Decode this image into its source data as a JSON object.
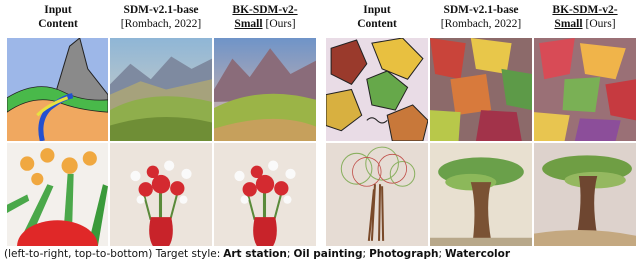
{
  "panels": [
    {
      "columns": [
        {
          "title": [
            "Input",
            "Content"
          ]
        },
        {
          "title": [
            "SDM-v2.1-base"
          ],
          "note": "[Rombach, 2022]"
        },
        {
          "title": [
            "BK-SDM-v2-",
            "Small"
          ],
          "note": "[Ours]",
          "underline": true
        }
      ]
    },
    {
      "columns": [
        {
          "title": [
            "Input",
            "Content"
          ]
        },
        {
          "title": [
            "SDM-v2.1-base"
          ],
          "note": "[Rombach, 2022]"
        },
        {
          "title": [
            "BK-SDM-v2-",
            "Small"
          ],
          "note": "[Ours]",
          "underline": true
        }
      ]
    }
  ],
  "caption": {
    "prefix": "(left-to-right, top-to-bottom) Target style:",
    "styles": [
      "Art station",
      "Oil painting",
      "Photograph",
      "Watercolor"
    ],
    "separator": ";"
  }
}
